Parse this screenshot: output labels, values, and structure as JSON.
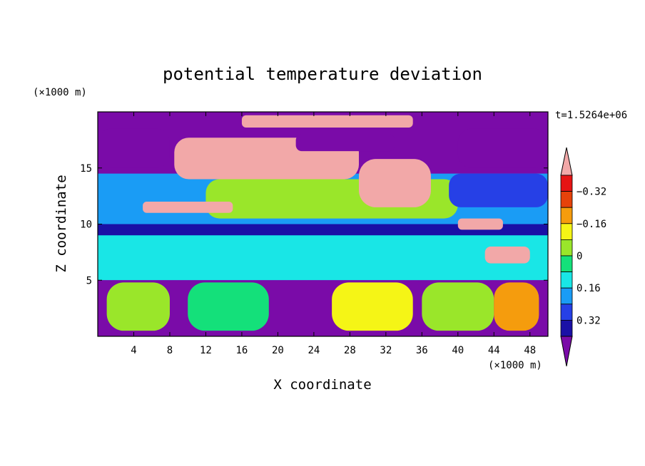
{
  "chart_data": {
    "type": "heatmap",
    "title": "potential temperature deviation",
    "xlabel": "X coordinate",
    "ylabel": "Z coordinate",
    "x_unit": "(×1000 m)",
    "y_unit": "(×1000 m)",
    "time_label": "t=1.5264e+06",
    "xlim": [
      0,
      50
    ],
    "ylim": [
      0,
      20
    ],
    "x_ticks": [
      4,
      8,
      12,
      16,
      20,
      24,
      28,
      32,
      36,
      40,
      44,
      48
    ],
    "y_ticks": [
      5,
      10,
      15
    ],
    "colorbar": {
      "levels": [
        -0.4,
        -0.32,
        -0.24,
        -0.16,
        -0.08,
        0,
        0.08,
        0.16,
        0.24,
        0.32,
        0.4
      ],
      "labeled_levels": [
        -0.32,
        -0.16,
        0,
        0.16,
        0.32
      ],
      "tick_labels": [
        "0.32",
        "0.16",
        "0",
        "−0.16",
        "−0.32"
      ],
      "colors": [
        "#7a0ba8",
        "#1a10a6",
        "#2640e6",
        "#1a9cf5",
        "#19e6e6",
        "#14e07a",
        "#9ae62a",
        "#f5f516",
        "#f59c0d",
        "#e6420a",
        "#e61414",
        "#f2a8a8"
      ]
    },
    "regions": [
      {
        "level": 0,
        "x": [
          0,
          50
        ],
        "z": [
          0,
          20
        ]
      },
      {
        "level": 1,
        "x": [
          0,
          50
        ],
        "z": [
          6.5,
          10
        ]
      },
      {
        "level": 3,
        "x": [
          0,
          50
        ],
        "z": [
          10,
          14.5
        ]
      },
      {
        "level": 6,
        "x": [
          12,
          40
        ],
        "z": [
          10.5,
          14
        ]
      },
      {
        "level": 4,
        "x": [
          0,
          50
        ],
        "z": [
          5,
          9
        ]
      },
      {
        "level": 11,
        "x": [
          8.5,
          29
        ],
        "z": [
          14,
          17.7
        ]
      },
      {
        "level": 11,
        "x": [
          29,
          37
        ],
        "z": [
          11.5,
          15.8
        ]
      },
      {
        "level": 11,
        "x": [
          16,
          35
        ],
        "z": [
          18.6,
          19.7
        ]
      },
      {
        "level": 0,
        "x": [
          22,
          33
        ],
        "z": [
          16.5,
          18
        ]
      },
      {
        "level": 0,
        "x": [
          0,
          8
        ],
        "z": [
          15,
          18.5
        ]
      },
      {
        "level": 0,
        "x": [
          40,
          50
        ],
        "z": [
          15,
          18.5
        ]
      },
      {
        "level": 2,
        "x": [
          39,
          50
        ],
        "z": [
          11.5,
          14.5
        ]
      },
      {
        "level": 11,
        "x": [
          5,
          15
        ],
        "z": [
          11,
          12
        ]
      },
      {
        "level": 11,
        "x": [
          40,
          45
        ],
        "z": [
          9.5,
          10.5
        ]
      },
      {
        "level": 11,
        "x": [
          43,
          48
        ],
        "z": [
          6.5,
          8
        ]
      },
      {
        "level": 0,
        "x": [
          0,
          50
        ],
        "z": [
          0,
          5
        ]
      },
      {
        "level": 6,
        "x": [
          1,
          8
        ],
        "z": [
          0.5,
          4.8
        ]
      },
      {
        "level": 5,
        "x": [
          10,
          19
        ],
        "z": [
          0.5,
          4.8
        ]
      },
      {
        "level": 7,
        "x": [
          26,
          35
        ],
        "z": [
          0.5,
          4.8
        ]
      },
      {
        "level": 6,
        "x": [
          36,
          44
        ],
        "z": [
          0.5,
          4.8
        ]
      },
      {
        "level": 8,
        "x": [
          44,
          49
        ],
        "z": [
          0.5,
          4.8
        ]
      }
    ]
  }
}
